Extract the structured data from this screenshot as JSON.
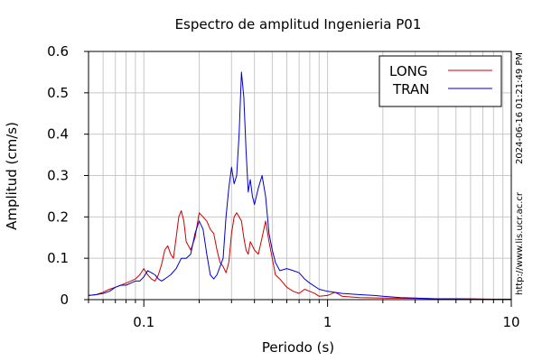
{
  "chart_data": {
    "type": "line",
    "title": "Espectro de amplitud Ingenieria P01",
    "xlabel": "Periodo (s)",
    "ylabel": "Amplitud (cm/s)",
    "x_scale": "log",
    "xlim": [
      0.05,
      10
    ],
    "ylim": [
      0,
      0.6
    ],
    "x_ticks": [
      {
        "value": 0.1,
        "label": "0.1"
      },
      {
        "value": 1,
        "label": "1"
      },
      {
        "value": 10,
        "label": "10"
      }
    ],
    "y_ticks": [
      {
        "value": 0,
        "label": "0"
      },
      {
        "value": 0.1,
        "label": "0.1"
      },
      {
        "value": 0.2,
        "label": "0.2"
      },
      {
        "value": 0.3,
        "label": "0.3"
      },
      {
        "value": 0.4,
        "label": "0.4"
      },
      {
        "value": 0.5,
        "label": "0.5"
      },
      {
        "value": 0.6,
        "label": "0.6"
      }
    ],
    "grid": true,
    "legend_position": "top-right",
    "timestamp": "2024-06-16 01:21:49 PM",
    "source": "http://www.lis.ucr.ac.cr",
    "series": [
      {
        "name": "LONG",
        "color": "#cc0000",
        "points": [
          [
            0.05,
            0.01
          ],
          [
            0.055,
            0.012
          ],
          [
            0.06,
            0.018
          ],
          [
            0.065,
            0.025
          ],
          [
            0.07,
            0.03
          ],
          [
            0.075,
            0.035
          ],
          [
            0.08,
            0.04
          ],
          [
            0.085,
            0.045
          ],
          [
            0.09,
            0.05
          ],
          [
            0.095,
            0.06
          ],
          [
            0.1,
            0.075
          ],
          [
            0.105,
            0.06
          ],
          [
            0.11,
            0.05
          ],
          [
            0.115,
            0.045
          ],
          [
            0.12,
            0.06
          ],
          [
            0.125,
            0.085
          ],
          [
            0.13,
            0.12
          ],
          [
            0.135,
            0.13
          ],
          [
            0.14,
            0.11
          ],
          [
            0.145,
            0.1
          ],
          [
            0.15,
            0.15
          ],
          [
            0.155,
            0.2
          ],
          [
            0.16,
            0.215
          ],
          [
            0.165,
            0.19
          ],
          [
            0.17,
            0.14
          ],
          [
            0.18,
            0.12
          ],
          [
            0.19,
            0.15
          ],
          [
            0.2,
            0.21
          ],
          [
            0.21,
            0.2
          ],
          [
            0.22,
            0.19
          ],
          [
            0.23,
            0.17
          ],
          [
            0.24,
            0.16
          ],
          [
            0.25,
            0.12
          ],
          [
            0.26,
            0.09
          ],
          [
            0.27,
            0.08
          ],
          [
            0.28,
            0.065
          ],
          [
            0.29,
            0.09
          ],
          [
            0.3,
            0.16
          ],
          [
            0.31,
            0.2
          ],
          [
            0.32,
            0.21
          ],
          [
            0.33,
            0.2
          ],
          [
            0.34,
            0.19
          ],
          [
            0.35,
            0.15
          ],
          [
            0.36,
            0.12
          ],
          [
            0.37,
            0.11
          ],
          [
            0.38,
            0.14
          ],
          [
            0.39,
            0.13
          ],
          [
            0.4,
            0.12
          ],
          [
            0.42,
            0.11
          ],
          [
            0.44,
            0.15
          ],
          [
            0.46,
            0.19
          ],
          [
            0.48,
            0.14
          ],
          [
            0.5,
            0.1
          ],
          [
            0.52,
            0.06
          ],
          [
            0.55,
            0.05
          ],
          [
            0.6,
            0.03
          ],
          [
            0.65,
            0.02
          ],
          [
            0.7,
            0.015
          ],
          [
            0.75,
            0.025
          ],
          [
            0.8,
            0.02
          ],
          [
            0.85,
            0.015
          ],
          [
            0.9,
            0.008
          ],
          [
            1.0,
            0.01
          ],
          [
            1.1,
            0.018
          ],
          [
            1.2,
            0.008
          ],
          [
            1.5,
            0.005
          ],
          [
            2,
            0.004
          ],
          [
            3,
            0.003
          ],
          [
            4,
            0.002
          ],
          [
            6,
            0.002
          ],
          [
            8,
            0.001
          ],
          [
            10,
            0.001
          ]
        ]
      },
      {
        "name": "TRAN",
        "color": "#0000cc",
        "points": [
          [
            0.05,
            0.01
          ],
          [
            0.055,
            0.012
          ],
          [
            0.06,
            0.015
          ],
          [
            0.065,
            0.02
          ],
          [
            0.07,
            0.03
          ],
          [
            0.075,
            0.035
          ],
          [
            0.08,
            0.035
          ],
          [
            0.085,
            0.04
          ],
          [
            0.09,
            0.045
          ],
          [
            0.095,
            0.045
          ],
          [
            0.1,
            0.055
          ],
          [
            0.105,
            0.07
          ],
          [
            0.11,
            0.065
          ],
          [
            0.115,
            0.06
          ],
          [
            0.12,
            0.05
          ],
          [
            0.125,
            0.045
          ],
          [
            0.13,
            0.05
          ],
          [
            0.14,
            0.06
          ],
          [
            0.15,
            0.075
          ],
          [
            0.16,
            0.1
          ],
          [
            0.17,
            0.1
          ],
          [
            0.18,
            0.11
          ],
          [
            0.19,
            0.16
          ],
          [
            0.2,
            0.19
          ],
          [
            0.21,
            0.17
          ],
          [
            0.22,
            0.11
          ],
          [
            0.23,
            0.06
          ],
          [
            0.24,
            0.05
          ],
          [
            0.25,
            0.06
          ],
          [
            0.26,
            0.08
          ],
          [
            0.27,
            0.1
          ],
          [
            0.28,
            0.2
          ],
          [
            0.29,
            0.27
          ],
          [
            0.3,
            0.32
          ],
          [
            0.31,
            0.28
          ],
          [
            0.32,
            0.3
          ],
          [
            0.33,
            0.4
          ],
          [
            0.34,
            0.55
          ],
          [
            0.35,
            0.49
          ],
          [
            0.36,
            0.36
          ],
          [
            0.37,
            0.26
          ],
          [
            0.38,
            0.29
          ],
          [
            0.39,
            0.25
          ],
          [
            0.4,
            0.23
          ],
          [
            0.42,
            0.27
          ],
          [
            0.44,
            0.3
          ],
          [
            0.46,
            0.25
          ],
          [
            0.48,
            0.16
          ],
          [
            0.5,
            0.12
          ],
          [
            0.52,
            0.09
          ],
          [
            0.55,
            0.07
          ],
          [
            0.6,
            0.075
          ],
          [
            0.65,
            0.07
          ],
          [
            0.7,
            0.065
          ],
          [
            0.75,
            0.05
          ],
          [
            0.8,
            0.04
          ],
          [
            0.9,
            0.025
          ],
          [
            1.0,
            0.02
          ],
          [
            1.2,
            0.015
          ],
          [
            1.5,
            0.012
          ],
          [
            1.8,
            0.01
          ],
          [
            2,
            0.008
          ],
          [
            2.5,
            0.005
          ],
          [
            3,
            0.004
          ],
          [
            4,
            0.002
          ],
          [
            5,
            0.002
          ],
          [
            7,
            0.001
          ],
          [
            10,
            0.001
          ]
        ]
      }
    ]
  }
}
